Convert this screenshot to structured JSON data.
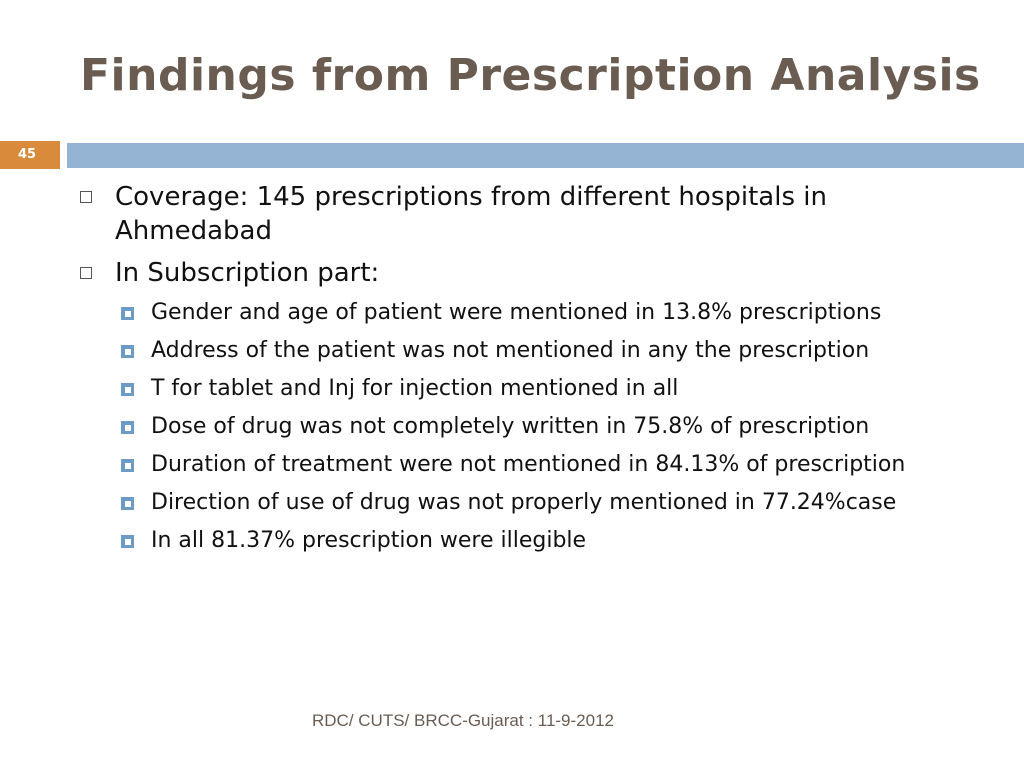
{
  "slide": {
    "title": "Findings from Prescription Analysis",
    "number": "45",
    "footer": "RDC/ CUTS/ BRCC-Gujarat : 11-9-2012"
  },
  "bullets": [
    {
      "level": 1,
      "text": "Coverage: 145 prescriptions from different hospitals in Ahmedabad"
    },
    {
      "level": 1,
      "text": "In Subscription part:"
    },
    {
      "level": 2,
      "text": "Gender and age of patient were mentioned in 13.8% prescriptions"
    },
    {
      "level": 2,
      "text": "Address of the patient was not mentioned in any the prescription"
    },
    {
      "level": 2,
      "text": "T for tablet and Inj for injection mentioned in all"
    },
    {
      "level": 2,
      "text": "Dose of drug was not completely written in 75.8% of prescription"
    },
    {
      "level": 2,
      "text": "Duration of treatment were not mentioned in 84.13% of prescription"
    },
    {
      "level": 2,
      "text": "Direction of use of drug was not properly mentioned in 77.24%case"
    },
    {
      "level": 2,
      "text": "In all 81.37% prescription were illegible"
    }
  ],
  "colors": {
    "title": "#6b5c52",
    "number_bar": "#d98a3a",
    "accent_bar": "#95b3d3",
    "bullet_square": "#6c9cc6"
  }
}
